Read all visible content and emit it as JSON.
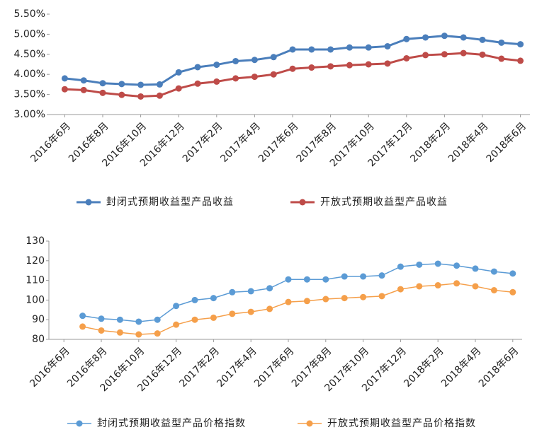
{
  "chart_data": [
    {
      "type": "line",
      "categories": [
        "2016年6月",
        null,
        "2016年8月",
        null,
        "2016年10月",
        null,
        "2016年12月",
        null,
        "2017年2月",
        null,
        "2017年4月",
        null,
        "2017年6月",
        null,
        "2017年8月",
        null,
        "2017年10月",
        null,
        "2017年12月",
        null,
        "2018年2月",
        null,
        "2018年4月",
        null,
        "2018年6月"
      ],
      "series": [
        {
          "name": "封闭式预期收益型产品收益",
          "color": "#4a7ebb",
          "values": [
            3.9,
            3.85,
            3.78,
            3.76,
            3.74,
            3.75,
            4.05,
            4.18,
            4.24,
            4.33,
            4.36,
            4.43,
            4.62,
            4.62,
            4.62,
            4.67,
            4.67,
            4.7,
            4.88,
            4.92,
            4.96,
            4.92,
            4.86,
            4.79,
            4.75
          ]
        },
        {
          "name": "开放式预期收益型产品收益",
          "color": "#be4b48",
          "values": [
            3.63,
            3.61,
            3.54,
            3.49,
            3.45,
            3.47,
            3.65,
            3.77,
            3.82,
            3.9,
            3.94,
            4.0,
            4.14,
            4.17,
            4.2,
            4.23,
            4.25,
            4.27,
            4.4,
            4.48,
            4.5,
            4.53,
            4.49,
            4.39,
            4.34
          ]
        }
      ],
      "ylim": [
        3.0,
        5.5
      ],
      "yticks": [
        {
          "value": 3.0,
          "label": "3.00%"
        },
        {
          "value": 3.5,
          "label": "3.50%"
        },
        {
          "value": 4.0,
          "label": "4.00%"
        },
        {
          "value": 4.5,
          "label": "4.50%"
        },
        {
          "value": 5.0,
          "label": "5.00%"
        },
        {
          "value": 5.5,
          "label": "5.50%"
        }
      ],
      "legend": "bottom"
    },
    {
      "type": "line",
      "categories": [
        "2016年6月",
        null,
        "2016年8月",
        null,
        "2016年10月",
        null,
        "2016年12月",
        null,
        "2017年2月",
        null,
        "2017年4月",
        null,
        "2017年6月",
        null,
        "2017年8月",
        null,
        "2017年10月",
        null,
        "2017年12月",
        null,
        "2018年2月",
        null,
        "2018年4月",
        null,
        "2018年6月"
      ],
      "series": [
        {
          "name": "封闭式预期收益型产品价格指数",
          "color": "#5b9bd5",
          "values": [
            null,
            92,
            90.5,
            90,
            89,
            90,
            97,
            100,
            101,
            104,
            104.5,
            106,
            110.5,
            110.5,
            110.5,
            112,
            112,
            112.5,
            117,
            118,
            118.5,
            117.5,
            116,
            114.5,
            113.5
          ]
        },
        {
          "name": "开放式预期收益型产品价格指数",
          "color": "#f59f4a",
          "values": [
            null,
            86.5,
            84.5,
            83.5,
            82.5,
            83,
            87.5,
            90,
            91,
            93,
            94,
            95.5,
            99,
            99.5,
            100.5,
            101,
            101.5,
            102,
            105.5,
            107,
            107.5,
            108.5,
            107,
            105,
            104
          ]
        }
      ],
      "ylim": [
        80,
        130
      ],
      "yticks": [
        80,
        90,
        100,
        110,
        120,
        130
      ],
      "legend": "bottom"
    }
  ]
}
